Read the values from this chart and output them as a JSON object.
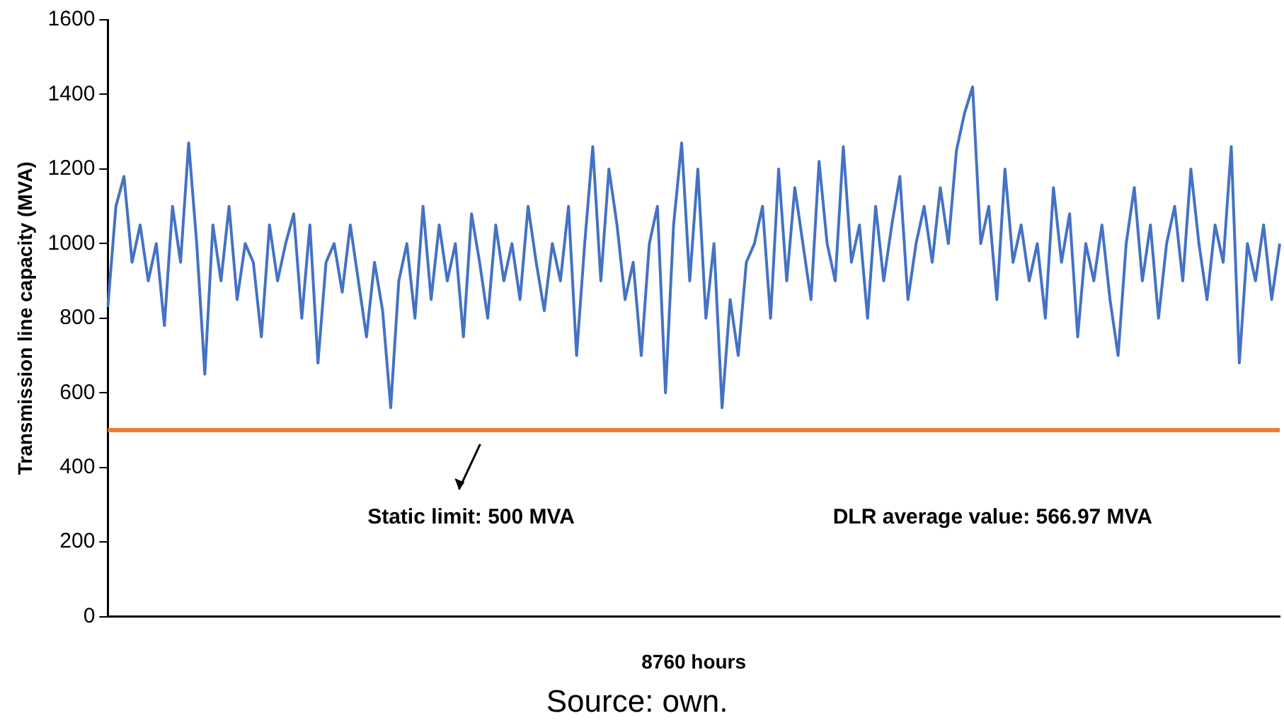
{
  "chart_data": {
    "type": "line",
    "xlabel": "8760 hours",
    "ylabel": "Transmission line capacity (MVA)",
    "categories": [
      null,
      null,
      null,
      null,
      null,
      null,
      null,
      null,
      null,
      null,
      null,
      null,
      null,
      null,
      null,
      null,
      null,
      null,
      null,
      null,
      null,
      null,
      null,
      null,
      null,
      null,
      null,
      null,
      null,
      null,
      null,
      null,
      null,
      null,
      null,
      null,
      null,
      null,
      null,
      null,
      null,
      null,
      null,
      null,
      null,
      null,
      null,
      null,
      null,
      null,
      null,
      null,
      null,
      null,
      null,
      null,
      null,
      null,
      null,
      null,
      null,
      null,
      null,
      null,
      null,
      null,
      null,
      null,
      null,
      null,
      null,
      null,
      null,
      null,
      null,
      null,
      null,
      null,
      null,
      null,
      null,
      null,
      null,
      null,
      null,
      null,
      null,
      null,
      null,
      null,
      null,
      null,
      null,
      null,
      null,
      null,
      null,
      null,
      null,
      null,
      null,
      null,
      null,
      null,
      null,
      null,
      null,
      null,
      null,
      null,
      null,
      null,
      null,
      null,
      null,
      null,
      null,
      null,
      null,
      null,
      null,
      null,
      null,
      null,
      null,
      null,
      null,
      null,
      null,
      null,
      null,
      null,
      null,
      null,
      null,
      null,
      null,
      null,
      null,
      null,
      null,
      null,
      null,
      null,
      null,
      null
    ],
    "series": [
      {
        "color": "#4472c4",
        "values": [
          830,
          1100,
          1180,
          950,
          1050,
          900,
          1000,
          780,
          1100,
          950,
          1270,
          1000,
          650,
          1050,
          900,
          1100,
          850,
          1000,
          950,
          750,
          1050,
          900,
          1000,
          1080,
          800,
          1050,
          680,
          950,
          1000,
          870,
          1050,
          900,
          750,
          950,
          820,
          560,
          900,
          1000,
          800,
          1100,
          850,
          1050,
          900,
          1000,
          750,
          1080,
          950,
          800,
          1050,
          900,
          1000,
          850,
          1100,
          950,
          820,
          1000,
          900,
          1100,
          700,
          1000,
          1260,
          900,
          1200,
          1050,
          850,
          950,
          700,
          1000,
          1100,
          600,
          1050,
          1270,
          900,
          1200,
          800,
          1000,
          560,
          850,
          700,
          950,
          1000,
          1100,
          800,
          1200,
          900,
          1150,
          1000,
          850,
          1220,
          1000,
          900,
          1260,
          950,
          1050,
          800,
          1100,
          900,
          1050,
          1180,
          850,
          1000,
          1100,
          950,
          1150,
          1000,
          1250,
          1350,
          1420,
          1000,
          1100,
          850,
          1200,
          950,
          1050,
          900,
          1000,
          800,
          1150,
          950,
          1080,
          750,
          1000,
          900,
          1050,
          850,
          700,
          1000,
          1150,
          900,
          1050,
          800,
          1000,
          1100,
          900,
          1200,
          1000,
          850,
          1050,
          950,
          1260,
          680,
          1000,
          900,
          1050,
          850,
          1000
        ]
      }
    ],
    "ylim": [
      0,
      1600
    ],
    "yticks": [
      0,
      200,
      400,
      600,
      800,
      1000,
      1200,
      1400,
      1600
    ],
    "ref_lines": [
      {
        "axis": "y",
        "value": 500,
        "label": "Static limit: 500 MVA",
        "color": "#ed7d31"
      }
    ],
    "annotations": [
      "DLR average value: 566.97 MVA",
      "Source: own."
    ],
    "grid": false,
    "legend": false,
    "marker": "none",
    "line_style": "solid"
  }
}
